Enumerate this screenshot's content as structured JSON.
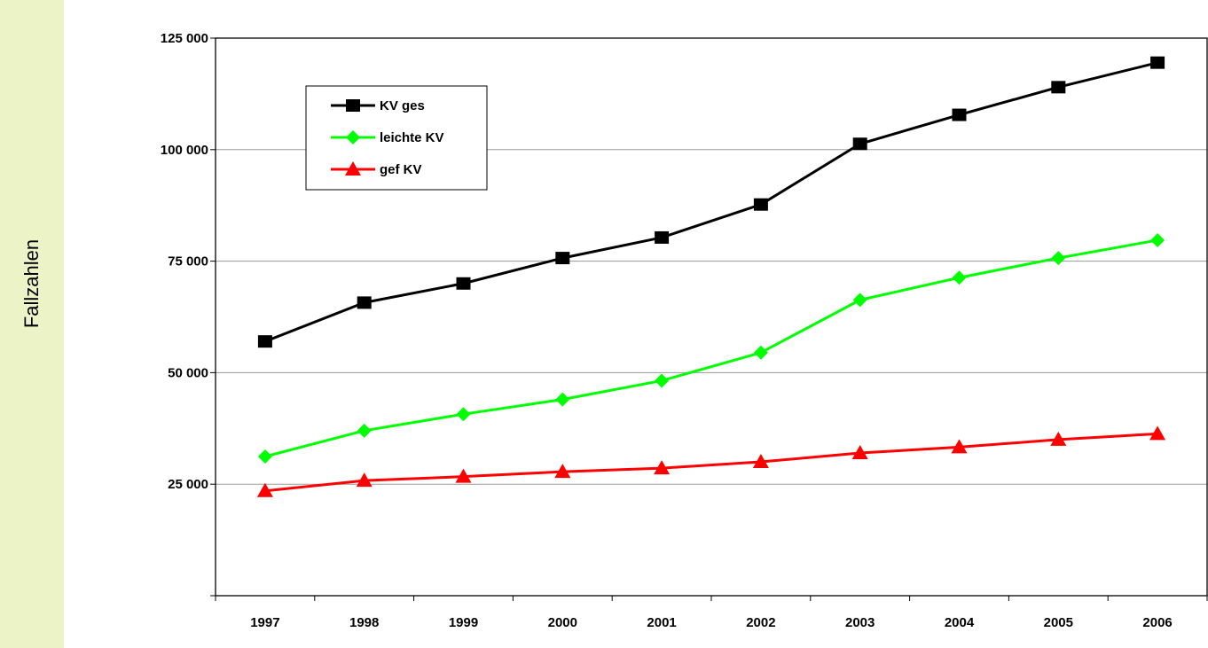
{
  "chart_data": {
    "type": "line",
    "ylabel": "Fallzahlen",
    "xlabel": "",
    "title": "",
    "categories": [
      "1997",
      "1998",
      "1999",
      "2000",
      "2001",
      "2002",
      "2003",
      "2004",
      "2005",
      "2006"
    ],
    "ylim": [
      0,
      125000
    ],
    "yticks": [
      {
        "value": 25000,
        "label": "25 000"
      },
      {
        "value": 50000,
        "label": "50 000"
      },
      {
        "value": 75000,
        "label": "75 000"
      },
      {
        "value": 100000,
        "label": "100 000"
      },
      {
        "value": 125000,
        "label": "125 000"
      }
    ],
    "grid": true,
    "legend_position": "top-left",
    "series": [
      {
        "name": "KV ges",
        "color": "#000000",
        "marker": "square",
        "values": [
          57000,
          65700,
          70000,
          75700,
          80300,
          87700,
          101300,
          107800,
          114000,
          119500
        ]
      },
      {
        "name": "leichte KV",
        "color": "#00ff00",
        "marker": "diamond",
        "values": [
          31200,
          37000,
          40700,
          44000,
          48200,
          54500,
          66300,
          71300,
          75700,
          79700
        ]
      },
      {
        "name": "gef KV",
        "color": "#ff0000",
        "marker": "triangle",
        "values": [
          23500,
          25800,
          26700,
          27800,
          28600,
          30000,
          32000,
          33300,
          35000,
          36300
        ]
      }
    ]
  }
}
